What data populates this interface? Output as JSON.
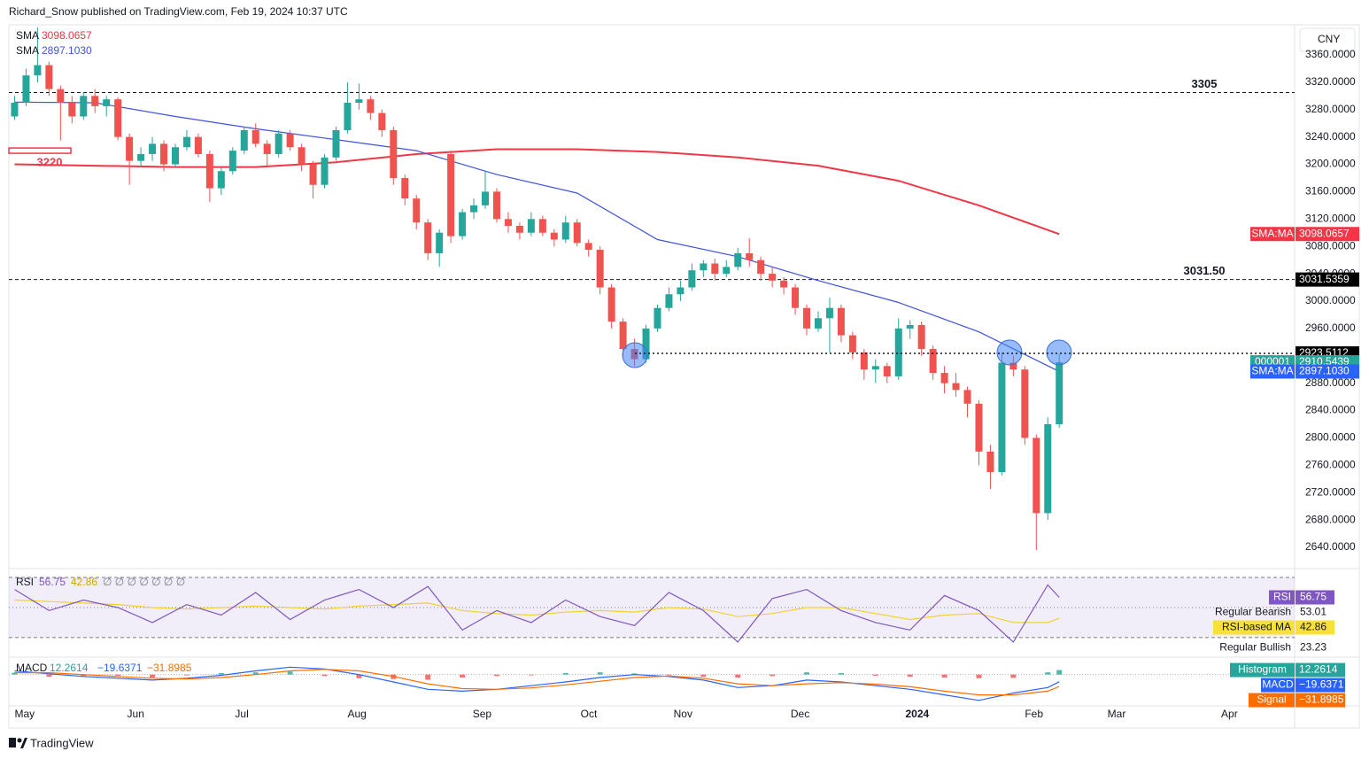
{
  "header": {
    "byline": "Richard_Snow published on TradingView.com, Feb 19, 2024 10:37 UTC",
    "currency": "CNY",
    "footer": "TradingView"
  },
  "chart_data": [
    {
      "type": "candlestick",
      "up_color": "#26a69a",
      "down_color": "#ef5350",
      "xlim": [
        0,
        112
      ],
      "xticks": [
        {
          "value": 0.5,
          "label": "May"
        },
        {
          "value": 10.3,
          "label": "Jun"
        },
        {
          "value": 19.7,
          "label": "Jul"
        },
        {
          "value": 29.5,
          "label": "Aug"
        },
        {
          "value": 40.4,
          "label": "Sep"
        },
        {
          "value": 49.8,
          "label": "Oct"
        },
        {
          "value": 57.9,
          "label": "Nov"
        },
        {
          "value": 68.1,
          "label": "Dec"
        },
        {
          "value": 78.1,
          "label": "2024"
        },
        {
          "value": 88.5,
          "label": "Feb"
        },
        {
          "value": 95.7,
          "label": "Mar"
        },
        {
          "value": 105.6,
          "label": "Apr"
        }
      ],
      "ylim": [
        2611.5,
        3404
      ],
      "yticks": [
        {
          "value": 2640,
          "label": "2640.0000"
        },
        {
          "value": 2680,
          "label": "2680.0000"
        },
        {
          "value": 2720,
          "label": "2720.0000"
        },
        {
          "value": 2760,
          "label": "2760.0000"
        },
        {
          "value": 2800,
          "label": "2800.0000"
        },
        {
          "value": 2840,
          "label": "2840.0000"
        },
        {
          "value": 2880,
          "label": "2880.0000"
        },
        {
          "value": 2920,
          "label": "2920.0000"
        },
        {
          "value": 2960,
          "label": "2960.0000"
        },
        {
          "value": 3000,
          "label": "3000.0000"
        },
        {
          "value": 3040,
          "label": "3040.0000"
        },
        {
          "value": 3080,
          "label": "3080.0000"
        },
        {
          "value": 3120,
          "label": "3120.0000"
        },
        {
          "value": 3160,
          "label": "3160.0000"
        },
        {
          "value": 3200,
          "label": "3200.0000"
        },
        {
          "value": 3240,
          "label": "3240.0000"
        },
        {
          "value": 3280,
          "label": "3280.0000"
        },
        {
          "value": 3320,
          "label": "3320.0000"
        },
        {
          "value": 3360,
          "label": "3360.0000"
        }
      ],
      "ohlc": [
        [
          3270,
          3300,
          3265,
          3290
        ],
        [
          3290,
          3340,
          3285,
          3330
        ],
        [
          3330,
          3400,
          3320,
          3345
        ],
        [
          3345,
          3350,
          3300,
          3310
        ],
        [
          3310,
          3315,
          3235,
          3290
        ],
        [
          3290,
          3300,
          3260,
          3270
        ],
        [
          3270,
          3305,
          3265,
          3300
        ],
        [
          3300,
          3310,
          3275,
          3285
        ],
        [
          3285,
          3300,
          3270,
          3295
        ],
        [
          3295,
          3298,
          3235,
          3240
        ],
        [
          3240,
          3245,
          3170,
          3205
        ],
        [
          3205,
          3225,
          3195,
          3215
        ],
        [
          3215,
          3240,
          3205,
          3230
        ],
        [
          3230,
          3235,
          3190,
          3200
        ],
        [
          3200,
          3230,
          3195,
          3225
        ],
        [
          3225,
          3250,
          3220,
          3240
        ],
        [
          3240,
          3245,
          3210,
          3215
        ],
        [
          3215,
          3220,
          3145,
          3165
        ],
        [
          3165,
          3195,
          3155,
          3190
        ],
        [
          3190,
          3225,
          3185,
          3220
        ],
        [
          3220,
          3255,
          3215,
          3250
        ],
        [
          3250,
          3260,
          3225,
          3230
        ],
        [
          3230,
          3235,
          3195,
          3215
        ],
        [
          3215,
          3250,
          3210,
          3245
        ],
        [
          3245,
          3250,
          3220,
          3225
        ],
        [
          3225,
          3230,
          3190,
          3200
        ],
        [
          3200,
          3205,
          3150,
          3170
        ],
        [
          3170,
          3215,
          3165,
          3210
        ],
        [
          3210,
          3255,
          3205,
          3250
        ],
        [
          3250,
          3320,
          3245,
          3290
        ],
        [
          3290,
          3318,
          3280,
          3295
        ],
        [
          3295,
          3300,
          3265,
          3275
        ],
        [
          3275,
          3280,
          3240,
          3250
        ],
        [
          3250,
          3255,
          3170,
          3180
        ],
        [
          3180,
          3185,
          3140,
          3150
        ],
        [
          3150,
          3155,
          3105,
          3115
        ],
        [
          3115,
          3120,
          3060,
          3070
        ],
        [
          3070,
          3105,
          3050,
          3100
        ],
        [
          3215,
          3220,
          3085,
          3095
        ],
        [
          3095,
          3135,
          3090,
          3130
        ],
        [
          3130,
          3150,
          3120,
          3140
        ],
        [
          3140,
          3190,
          3135,
          3160
        ],
        [
          3160,
          3165,
          3115,
          3120
        ],
        [
          3120,
          3130,
          3100,
          3110
        ],
        [
          3110,
          3115,
          3090,
          3100
        ],
        [
          3100,
          3130,
          3095,
          3120
        ],
        [
          3120,
          3125,
          3095,
          3100
        ],
        [
          3100,
          3105,
          3080,
          3090
        ],
        [
          3090,
          3125,
          3085,
          3115
        ],
        [
          3115,
          3120,
          3080,
          3085
        ],
        [
          3085,
          3090,
          3065,
          3075
        ],
        [
          3075,
          3080,
          3010,
          3020
        ],
        [
          3020,
          3025,
          2960,
          2970
        ],
        [
          2970,
          2975,
          2920,
          2930
        ],
        [
          2930,
          2945,
          2905,
          2915
        ],
        [
          2915,
          2965,
          2910,
          2960
        ],
        [
          2960,
          2995,
          2955,
          2990
        ],
        [
          2990,
          3020,
          2985,
          3010
        ],
        [
          3010,
          3030,
          3000,
          3020
        ],
        [
          3020,
          3055,
          3015,
          3045
        ],
        [
          3045,
          3060,
          3035,
          3055
        ],
        [
          3055,
          3062,
          3030,
          3040
        ],
        [
          3040,
          3060,
          3035,
          3050
        ],
        [
          3050,
          3078,
          3045,
          3070
        ],
        [
          3070,
          3092,
          3050,
          3060
        ],
        [
          3060,
          3065,
          3030,
          3040
        ],
        [
          3040,
          3050,
          3020,
          3030
        ],
        [
          3030,
          3035,
          3010,
          3020
        ],
        [
          3020,
          3025,
          2980,
          2990
        ],
        [
          2990,
          2995,
          2950,
          2960
        ],
        [
          2960,
          2985,
          2955,
          2975
        ],
        [
          2975,
          3005,
          2925,
          2990
        ],
        [
          2990,
          2995,
          2940,
          2950
        ],
        [
          2950,
          2955,
          2915,
          2925
        ],
        [
          2925,
          2930,
          2885,
          2900
        ],
        [
          2900,
          2915,
          2880,
          2905
        ],
        [
          2905,
          2910,
          2880,
          2890
        ],
        [
          2890,
          2975,
          2885,
          2960
        ],
        [
          2960,
          2972,
          2945,
          2965
        ],
        [
          2965,
          2970,
          2920,
          2930
        ],
        [
          2930,
          2935,
          2885,
          2895
        ],
        [
          2895,
          2905,
          2865,
          2880
        ],
        [
          2880,
          2895,
          2860,
          2870
        ],
        [
          2870,
          2875,
          2830,
          2850
        ],
        [
          2850,
          2855,
          2760,
          2780
        ],
        [
          2780,
          2790,
          2725,
          2750
        ],
        [
          2750,
          2925,
          2745,
          2910
        ],
        [
          2910,
          2920,
          2890,
          2900
        ],
        [
          2900,
          2905,
          2790,
          2800
        ],
        [
          2800,
          2805,
          2636,
          2690
        ],
        [
          2690,
          2830,
          2680,
          2820
        ],
        [
          2820,
          2922,
          2815,
          2910.5439
        ]
      ],
      "series": [
        {
          "name": "SMA",
          "color": "#f23645",
          "x": [
            0,
            7,
            14,
            21,
            28,
            35,
            42,
            49,
            56,
            63,
            70,
            77,
            84,
            91
          ],
          "values": [
            3200,
            3198,
            3196,
            3196,
            3203,
            3215,
            3222,
            3222,
            3218,
            3210,
            3198,
            3176,
            3140,
            3098.0657
          ]
        },
        {
          "name": "SMA",
          "color": "#3f51e0",
          "x": [
            0,
            7,
            14,
            21,
            28,
            35,
            42,
            49,
            56,
            63,
            70,
            77,
            84,
            91
          ],
          "values": [
            3291,
            3290,
            3270,
            3252,
            3236,
            3220,
            3185,
            3158,
            3090,
            3065,
            3030,
            2998,
            2955,
            2897.103
          ]
        }
      ],
      "levels": [
        {
          "value": 3305,
          "style": "dashed"
        },
        {
          "value": {
            "value": 3031.5,
            "label": "3031.50"
          },
          "style": "dashed"
        },
        {
          "value": 3220,
          "style": "box",
          "color": "#f23645"
        }
      ],
      "price_tags": [
        {
          "name": "SMA:MA",
          "value": 3098.0657,
          "color": "#f23645"
        },
        {
          "value": 3031.5359,
          "color": "#000000"
        },
        {
          "value": 2923.5112,
          "color": "#000000",
          "line": "dotted"
        },
        {
          "name": "000001",
          "value": 2910.5439,
          "color": "#26a69a"
        },
        {
          "name": "SMA:MA",
          "value": {
            "value": 2897.103,
            "label": "2897.1030"
          },
          "color": "#2962ff"
        }
      ]
    },
    {
      "type": "rsi",
      "name": "RSI",
      "ylim": [
        17,
        75.3
      ],
      "bands": [
        70,
        50,
        30
      ],
      "legend_extra": "∅ ∅ ∅ ∅ ∅ ∅ ∅",
      "x": [
        0,
        3,
        6,
        9,
        12,
        15,
        18,
        21,
        24,
        27,
        30,
        33,
        36,
        39,
        42,
        45,
        48,
        51,
        54,
        57,
        60,
        63,
        66,
        69,
        72,
        75,
        78,
        81,
        84,
        87,
        90,
        91
      ],
      "series": [
        {
          "name": "RSI",
          "color": "#7e57c2",
          "values": [
            62,
            48,
            55,
            50,
            40,
            52,
            45,
            60,
            42,
            55,
            62,
            50,
            64,
            35,
            48,
            40,
            55,
            44,
            38,
            60,
            48,
            27,
            56,
            62,
            48,
            40,
            35,
            58,
            48,
            27,
            65,
            56.75
          ]
        },
        {
          "name": "RSI-based MA",
          "color": "#f2d230",
          "values": [
            55,
            54,
            53,
            52,
            50,
            49,
            50,
            51,
            50,
            49,
            51,
            52,
            53,
            48,
            46,
            45,
            47,
            48,
            47,
            50,
            49,
            44,
            46,
            50,
            50,
            46,
            42,
            45,
            46,
            40,
            40,
            42.86
          ]
        }
      ],
      "tags": [
        {
          "name": "RSI",
          "value": 56.75,
          "color": "#7e57c2"
        },
        {
          "name": "Regular Bearish",
          "value": 53.01
        },
        {
          "name": "RSI-based MA",
          "value": 42.86,
          "color": "#f7e03a"
        },
        {
          "name": "Regular Bullish",
          "value": 23.23
        }
      ]
    },
    {
      "type": "macd",
      "name": "MACD",
      "ylim": [
        -80,
        40
      ],
      "zero": 0,
      "x": [
        0,
        3,
        6,
        9,
        12,
        15,
        18,
        21,
        24,
        27,
        30,
        33,
        36,
        39,
        42,
        45,
        48,
        51,
        54,
        57,
        60,
        63,
        66,
        69,
        72,
        75,
        78,
        81,
        84,
        87,
        90,
        91
      ],
      "histogram": {
        "name": "Histogram",
        "color_up": "#26a69a",
        "color_down": "#ef5350",
        "values": [
          5,
          -6,
          -4,
          -3,
          -8,
          -2,
          4,
          6,
          8,
          -4,
          -10,
          -12,
          -14,
          -8,
          -4,
          -2,
          4,
          6,
          3,
          -2,
          -6,
          -8,
          -4,
          6,
          4,
          -3,
          -6,
          -8,
          -10,
          -9,
          6,
          12.2614
        ]
      },
      "series": [
        {
          "name": "MACD",
          "color": "#2962ff",
          "values": [
            10,
            2,
            -5,
            -10,
            -15,
            -10,
            -2,
            10,
            20,
            15,
            0,
            -20,
            -40,
            -45,
            -40,
            -30,
            -20,
            -8,
            0,
            -5,
            -15,
            -35,
            -30,
            -15,
            -20,
            -30,
            -40,
            -55,
            -70,
            -50,
            -35,
            -19.6371
          ]
        },
        {
          "name": "Signal",
          "color": "#ff6d00",
          "values": [
            5,
            5,
            0,
            -5,
            -10,
            -12,
            -8,
            0,
            10,
            14,
            10,
            -5,
            -25,
            -38,
            -40,
            -36,
            -28,
            -18,
            -8,
            -4,
            -10,
            -25,
            -30,
            -25,
            -22,
            -26,
            -33,
            -45,
            -55,
            -55,
            -45,
            -31.8985
          ]
        }
      ],
      "tags": [
        {
          "name": "Histogram",
          "value": 12.2614,
          "color": "#26a69a"
        },
        {
          "name": "MACD",
          "value": {
            "value": -19.6371,
            "label": "−19.6371"
          },
          "color": "#2962ff"
        },
        {
          "name": "Signal",
          "value": {
            "value": -31.8985,
            "label": "−31.8985"
          },
          "color": "#ff6d00"
        }
      ]
    }
  ]
}
